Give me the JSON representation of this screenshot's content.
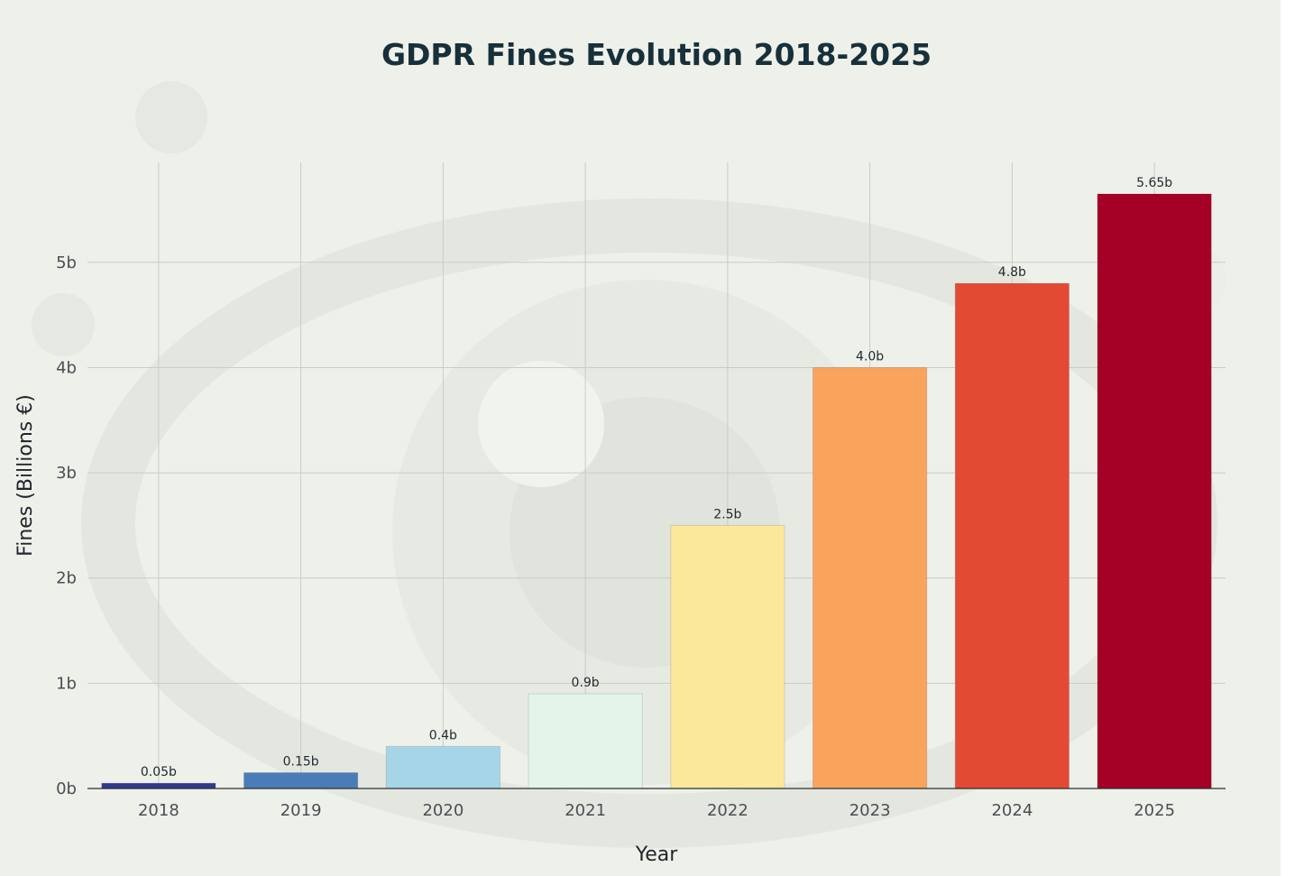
{
  "chart_data": {
    "type": "bar",
    "title": "GDPR Fines Evolution 2018-2025",
    "xlabel": "Year",
    "ylabel": "Fines (Billions €)",
    "categories": [
      "2018",
      "2019",
      "2020",
      "2021",
      "2022",
      "2023",
      "2024",
      "2025"
    ],
    "values": [
      0.05,
      0.15,
      0.4,
      0.9,
      2.5,
      4.0,
      4.8,
      5.65
    ],
    "data_labels": [
      "0.05b",
      "0.15b",
      "0.4b",
      "0.9b",
      "2.5b",
      "4.0b",
      "4.8b",
      "5.65b"
    ],
    "colors": [
      "#2f3a8f",
      "#4a7db8",
      "#a6d5e8",
      "#e3f4e8",
      "#fce89a",
      "#f9a35c",
      "#e34a33",
      "#a50026"
    ],
    "ylim": [
      0,
      5.95
    ],
    "y_ticks": [
      0,
      1,
      2,
      3,
      4,
      5
    ],
    "y_tick_labels": [
      "0b",
      "1b",
      "2b",
      "3b",
      "4b",
      "5b"
    ],
    "grid": true,
    "legend": "none"
  }
}
